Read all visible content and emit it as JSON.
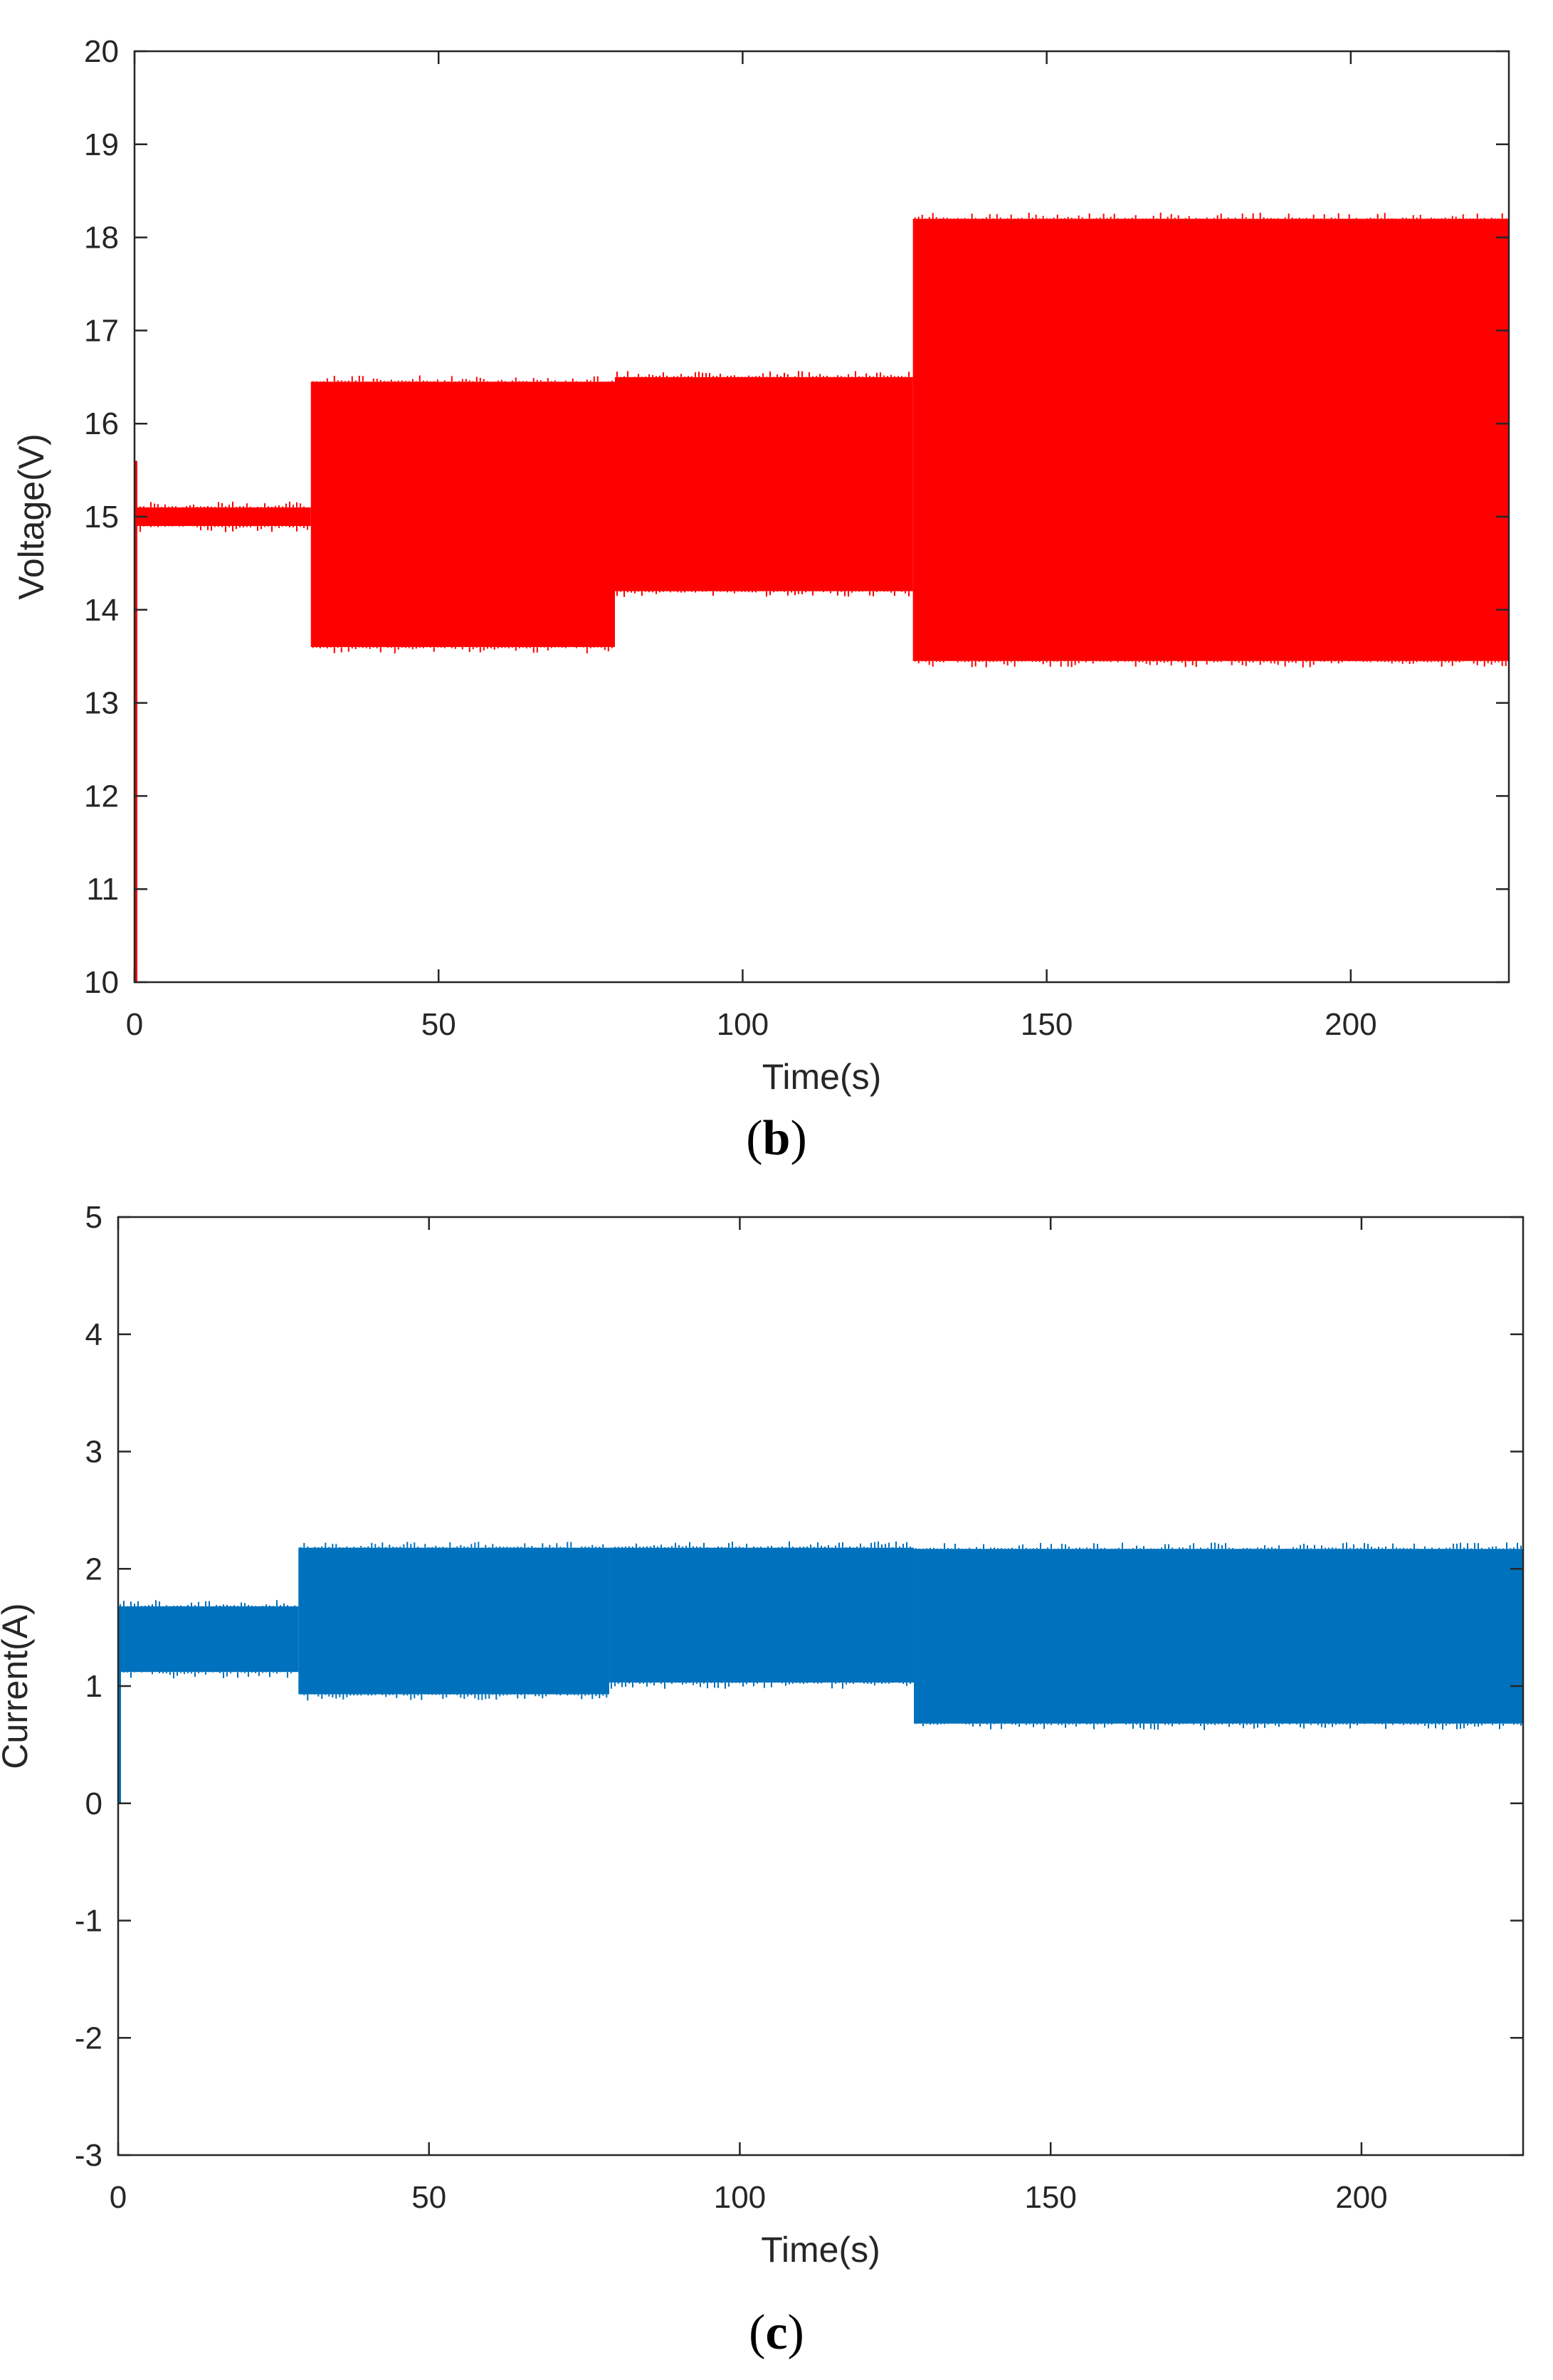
{
  "chart_data": [
    {
      "panel": "b",
      "type": "area",
      "xlabel": "Time(s)",
      "ylabel": "Voltage(V)",
      "xlim": [
        0,
        226
      ],
      "ylim": [
        10,
        20
      ],
      "xticks": [
        0,
        50,
        100,
        150,
        200
      ],
      "yticks": [
        10,
        11,
        12,
        13,
        14,
        15,
        16,
        17,
        18,
        19,
        20
      ],
      "color": "#ff0000",
      "initial_transient": {
        "x": 0,
        "min": 10,
        "max": 15.6
      },
      "bands": [
        {
          "x_start": 0,
          "x_end": 29,
          "min": 14.9,
          "max": 15.1
        },
        {
          "x_start": 29,
          "x_end": 79,
          "min": 13.6,
          "max": 16.45
        },
        {
          "x_start": 79,
          "x_end": 128,
          "min": 14.2,
          "max": 16.5
        },
        {
          "x_start": 128,
          "x_end": 226,
          "min": 13.45,
          "max": 18.2
        }
      ]
    },
    {
      "panel": "c",
      "type": "area",
      "xlabel": "Time(s)",
      "ylabel": "Current(A)",
      "xlim": [
        0,
        226
      ],
      "ylim": [
        -3,
        5
      ],
      "xticks": [
        0,
        50,
        100,
        150,
        200
      ],
      "yticks": [
        -3,
        -2,
        -1,
        0,
        1,
        2,
        3,
        4,
        5
      ],
      "color": "#0072bd",
      "initial_transient": {
        "x": 0,
        "min": 0,
        "max": 1.5
      },
      "bands": [
        {
          "x_start": 0,
          "x_end": 29,
          "min": 1.12,
          "max": 1.68
        },
        {
          "x_start": 29,
          "x_end": 79,
          "min": 0.93,
          "max": 2.18
        },
        {
          "x_start": 79,
          "x_end": 128,
          "min": 1.03,
          "max": 2.18
        },
        {
          "x_start": 128,
          "x_end": 226,
          "min": 0.68,
          "max": 2.17
        }
      ]
    }
  ],
  "captions": {
    "b": "b",
    "c": "c"
  }
}
